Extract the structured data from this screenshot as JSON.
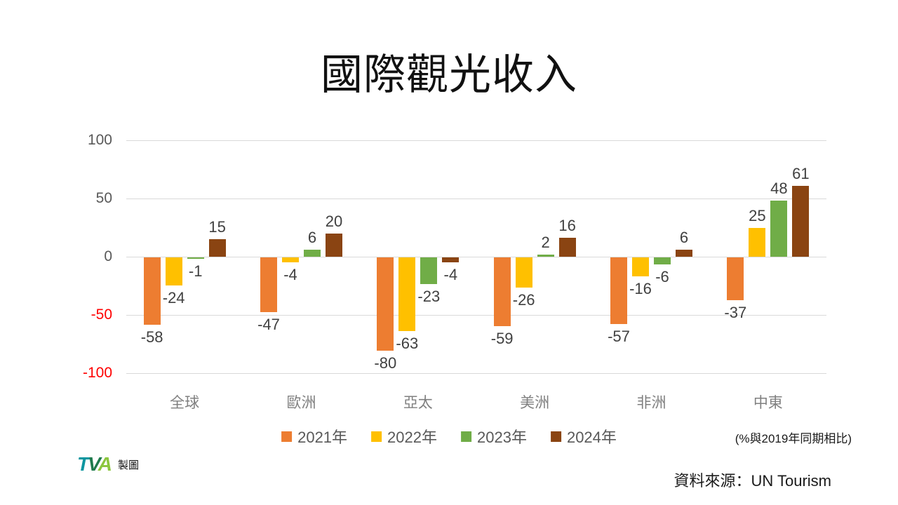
{
  "title": "國際觀光收入",
  "chart_data": {
    "type": "bar",
    "categories": [
      "全球",
      "歐洲",
      "亞太",
      "美洲",
      "非洲",
      "中東"
    ],
    "series": [
      {
        "name": "2021年",
        "color": "#ED7D31",
        "values": [
          -58,
          -47,
          -80,
          -59,
          -57,
          -37
        ]
      },
      {
        "name": "2022年",
        "color": "#FFC000",
        "values": [
          -24,
          -4,
          -63,
          -26,
          -16,
          25
        ]
      },
      {
        "name": "2023年",
        "color": "#70AD47",
        "values": [
          -1,
          6,
          -23,
          2,
          -6,
          48
        ]
      },
      {
        "name": "2024年",
        "color": "#8A4412",
        "values": [
          15,
          20,
          -4,
          16,
          6,
          61
        ]
      }
    ],
    "ylabel": "",
    "xlabel": "",
    "ylim": [
      -100,
      100
    ],
    "yticks": [
      100,
      50,
      0,
      -50,
      -100
    ],
    "tick_color": "#595959",
    "negative_tick_color": "#FF0000",
    "grid": true,
    "legend_position": "bottom"
  },
  "note": "(%與2019年同期相比)",
  "source": "資料來源：UN Tourism",
  "logo": {
    "t": "T",
    "v": "V",
    "a": "A",
    "t_color": "#0E96A0",
    "v_color": "#1F7A4D",
    "a_color": "#8CC63E",
    "caption": "製圖"
  }
}
